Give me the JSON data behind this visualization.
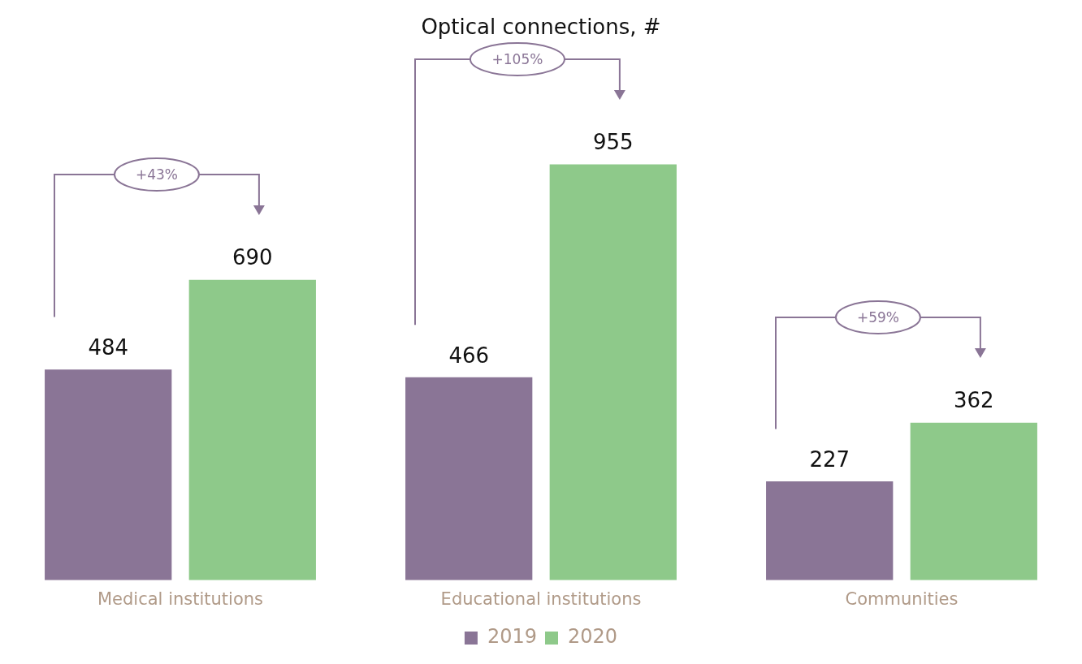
{
  "chart_data": {
    "type": "bar",
    "title": "Optical connections, #",
    "categories": [
      "Medical institutions",
      "Educational institutions",
      "Communities"
    ],
    "series": [
      {
        "name": "2019",
        "color": "#8a7596",
        "values": [
          484,
          466,
          227
        ]
      },
      {
        "name": "2020",
        "color": "#8ec98a",
        "values": [
          690,
          955,
          362
        ]
      }
    ],
    "data_labels": true,
    "grid": false,
    "legend": "bottom",
    "annotations": [
      "+43%",
      "+105%",
      "+59%"
    ]
  }
}
